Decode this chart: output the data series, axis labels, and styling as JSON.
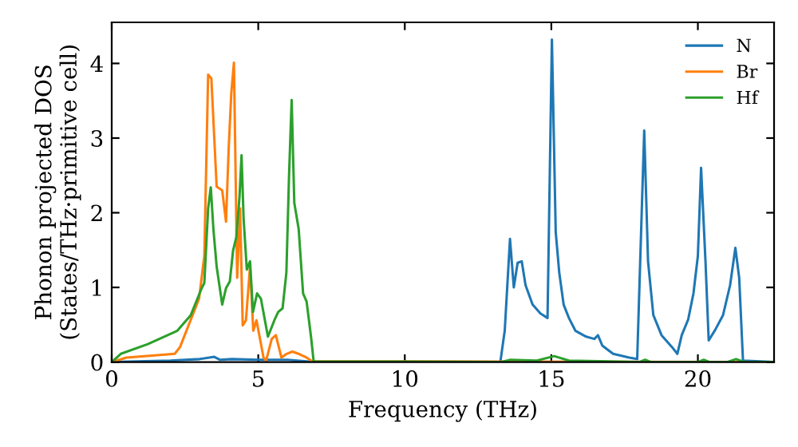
{
  "chart_data": {
    "type": "line",
    "xlabel": "Frequency (THz)",
    "ylabel": "Phonon projected DOS\n(States/THz·primitive cell)",
    "xlim": [
      0,
      22.6
    ],
    "ylim": [
      0,
      4.55
    ],
    "xticks": [
      0,
      5,
      10,
      15,
      20
    ],
    "yticks": [
      0,
      1,
      2,
      3,
      4
    ],
    "grid": false,
    "legend": "top right",
    "marker": "none",
    "line_style": "solid",
    "series": [
      {
        "name": "N",
        "color": "#1f77b4",
        "x": [
          0,
          2,
          3,
          3.5,
          3.7,
          4.1,
          5,
          6,
          6.9,
          13.26,
          13.41,
          13.59,
          13.72,
          13.85,
          13.99,
          14.12,
          14.36,
          14.63,
          14.87,
          15.02,
          15.15,
          15.27,
          15.42,
          15.6,
          15.82,
          16.19,
          16.47,
          16.59,
          16.74,
          17.11,
          17.66,
          17.93,
          18.17,
          18.3,
          18.48,
          18.76,
          19.12,
          19.3,
          19.45,
          19.67,
          19.85,
          20.0,
          20.11,
          20.26,
          20.37,
          20.59,
          20.86,
          21.1,
          21.28,
          21.41,
          21.54,
          22.6
        ],
        "values": [
          0,
          0.02,
          0.04,
          0.07,
          0.03,
          0.04,
          0.03,
          0.03,
          0,
          0,
          0.42,
          1.65,
          1.0,
          1.33,
          1.35,
          1.03,
          0.77,
          0.65,
          0.59,
          4.32,
          1.74,
          1.2,
          0.77,
          0.59,
          0.42,
          0.34,
          0.31,
          0.36,
          0.22,
          0.11,
          0.06,
          0.04,
          3.1,
          1.35,
          0.63,
          0.36,
          0.2,
          0.11,
          0.36,
          0.57,
          0.92,
          1.42,
          2.6,
          1.35,
          0.29,
          0.43,
          0.63,
          1.03,
          1.53,
          1.13,
          0.02,
          0
        ]
      },
      {
        "name": "Br",
        "color": "#ff7f0e",
        "x": [
          0,
          0.5,
          2.15,
          2.33,
          2.98,
          3.16,
          3.29,
          3.4,
          3.58,
          3.77,
          3.9,
          3.99,
          4.08,
          4.17,
          4.28,
          4.38,
          4.47,
          4.58,
          4.72,
          4.83,
          4.94,
          5.18,
          5.27,
          5.46,
          5.6,
          5.79,
          5.97,
          6.16,
          6.38,
          6.65,
          6.84,
          22.6
        ],
        "values": [
          0,
          0.06,
          0.11,
          0.2,
          0.85,
          1.42,
          3.85,
          3.8,
          2.35,
          2.3,
          1.88,
          2.85,
          3.6,
          4.01,
          1.13,
          2.06,
          0.49,
          0.56,
          1.28,
          0.42,
          0.56,
          0.06,
          0.02,
          0.31,
          0.36,
          0.06,
          0.11,
          0.14,
          0.11,
          0.06,
          0.01,
          0
        ]
      },
      {
        "name": "Hf",
        "color": "#2ca02c",
        "x": [
          0,
          0.31,
          1.23,
          2.24,
          2.7,
          3.07,
          3.16,
          3.29,
          3.38,
          3.47,
          3.58,
          3.77,
          3.9,
          4.03,
          4.14,
          4.25,
          4.36,
          4.43,
          4.5,
          4.61,
          4.72,
          4.82,
          4.96,
          5.09,
          5.33,
          5.55,
          5.68,
          5.83,
          5.96,
          6.05,
          6.14,
          6.23,
          6.38,
          6.53,
          6.65,
          6.8,
          6.89,
          13.3,
          13.6,
          14.5,
          15.1,
          15.6,
          18.0,
          18.2,
          18.4,
          20.0,
          20.2,
          20.4,
          21.0,
          21.3,
          21.6,
          22.6
        ],
        "values": [
          0,
          0.11,
          0.24,
          0.42,
          0.63,
          0.99,
          1.06,
          2.06,
          2.34,
          1.78,
          1.28,
          0.77,
          0.99,
          1.08,
          1.49,
          1.67,
          2.21,
          2.77,
          1.92,
          1.24,
          1.35,
          0.67,
          0.92,
          0.85,
          0.34,
          0.56,
          0.67,
          0.72,
          1.2,
          2.49,
          3.51,
          2.13,
          1.78,
          0.92,
          0.81,
          0.34,
          0.01,
          0,
          0.03,
          0.02,
          0.08,
          0.02,
          0,
          0.03,
          0,
          0,
          0.03,
          0,
          0,
          0.04,
          0,
          0
        ]
      }
    ]
  }
}
